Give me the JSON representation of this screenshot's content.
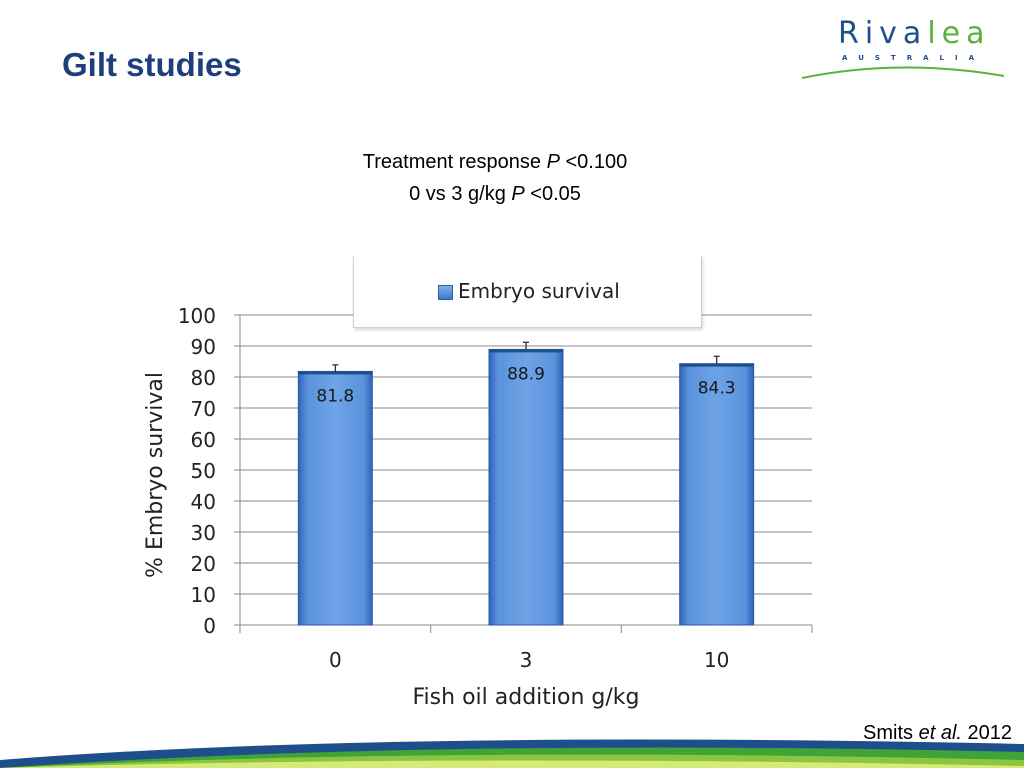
{
  "slide": {
    "title": "Gilt studies",
    "subtitle_line1": "Treatment response",
    "subtitle_line1_p": "P",
    "subtitle_line1_val": "<0.100",
    "subtitle_line2": "0 vs 3 g/kg",
    "subtitle_line2_p": "P",
    "subtitle_line2_val": "<0.05",
    "citation_name": "Smits",
    "citation_etal": "et al.",
    "citation_year": "2012"
  },
  "logo": {
    "word_part1": "Riva",
    "word_part2": "lea",
    "sub": "AUSTRALIA",
    "color_blue": "#1f4f8a",
    "color_green": "#59b33b"
  },
  "chart_data": {
    "type": "bar",
    "categories": [
      "0",
      "3",
      "10"
    ],
    "series": [
      {
        "name": "Embryo survival",
        "values": [
          81.8,
          88.9,
          84.3
        ],
        "errors": [
          2.1,
          2.3,
          2.4
        ]
      }
    ],
    "data_labels": [
      "81.8",
      "88.9",
      "84.3"
    ],
    "xlabel": "Fish oil addition g/kg",
    "ylabel": "% Embryo survival",
    "ylim": [
      0,
      100
    ],
    "yticks": [
      0,
      10,
      20,
      30,
      40,
      50,
      60,
      70,
      80,
      90,
      100
    ],
    "grid": true,
    "legend_position": "top",
    "bar_color": "#5b93dc"
  }
}
